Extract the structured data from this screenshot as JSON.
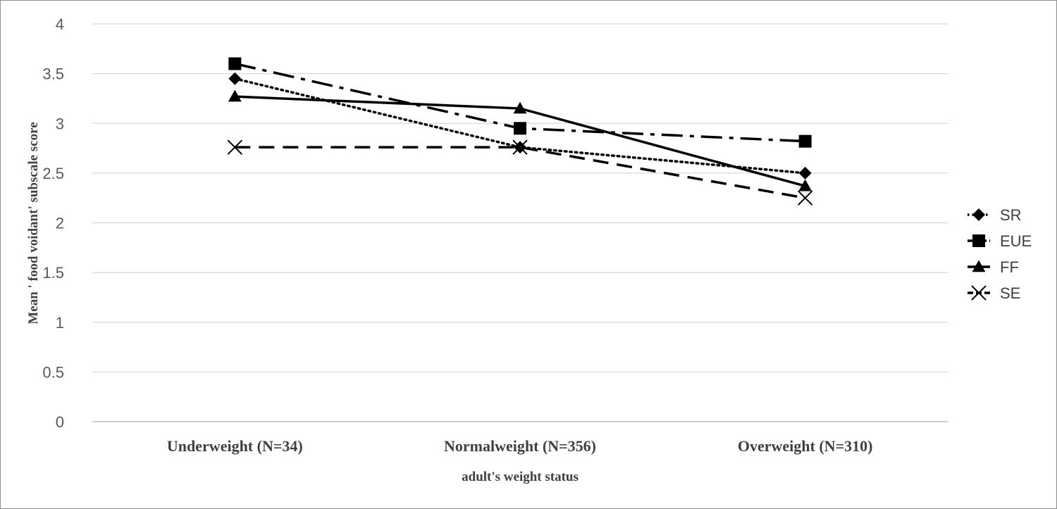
{
  "chart_data": {
    "type": "line",
    "title": "",
    "xlabel": "adult's weight status",
    "ylabel": "Mean ' food voidant' subscale score",
    "categories": [
      "Underweight (N=34)",
      "Normalweight (N=356)",
      "Overweight (N=310)"
    ],
    "ylim": [
      0,
      4
    ],
    "yticks": [
      "0",
      "0.5",
      "1",
      "1.5",
      "2",
      "2.5",
      "3",
      "3.5",
      "4"
    ],
    "grid": true,
    "legend_position": "right",
    "series": [
      {
        "name": "SR",
        "values": [
          3.45,
          2.76,
          2.5
        ],
        "marker": "diamond",
        "dash": "dotted"
      },
      {
        "name": "EUE",
        "values": [
          3.6,
          2.95,
          2.82
        ],
        "marker": "square",
        "dash": "dashdot"
      },
      {
        "name": "FF",
        "values": [
          3.27,
          3.15,
          2.37
        ],
        "marker": "triangle",
        "dash": "solid"
      },
      {
        "name": "SE",
        "values": [
          2.76,
          2.76,
          2.25
        ],
        "marker": "x",
        "dash": "dashed"
      }
    ]
  }
}
